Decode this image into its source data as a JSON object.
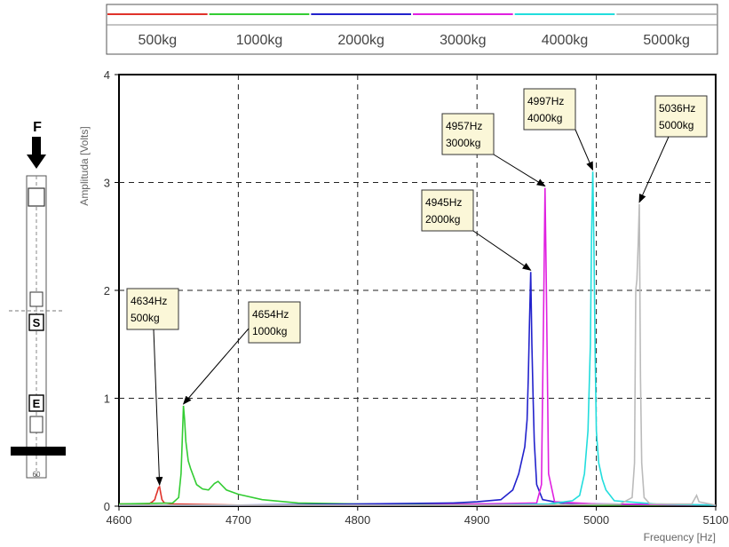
{
  "chart_data": {
    "type": "line",
    "title": "",
    "xlabel": "Frequency [Hz]",
    "ylabel": "Amplituda [Volts]",
    "xlim": [
      4600,
      5100
    ],
    "ylim": [
      0,
      4
    ],
    "xticks": [
      "4600",
      "4700",
      "4800",
      "4900",
      "5000",
      "5100"
    ],
    "yticks": [
      "0",
      "1",
      "2",
      "3",
      "4"
    ],
    "grid": true,
    "legend_position": "top",
    "series": [
      {
        "name": "500kg",
        "color": "#e0322a",
        "peak_label": [
          "4634Hz",
          "500kg"
        ],
        "x": [
          4600,
          4625,
          4628,
          4630,
          4631,
          4632,
          4633,
          4634,
          4635,
          4636,
          4638,
          4645,
          4700,
          4800,
          4900,
          5000,
          5100
        ],
        "y": [
          0.02,
          0.02,
          0.04,
          0.06,
          0.1,
          0.13,
          0.17,
          0.18,
          0.12,
          0.06,
          0.03,
          0.02,
          0.01,
          0.01,
          0.01,
          0.01,
          0.01
        ]
      },
      {
        "name": "1000kg",
        "color": "#33cc33",
        "peak_label": [
          "4654Hz",
          "1000kg"
        ],
        "x": [
          4600,
          4645,
          4650,
          4652,
          4653,
          4654,
          4655,
          4656,
          4658,
          4660,
          4665,
          4670,
          4675,
          4680,
          4683,
          4690,
          4700,
          4720,
          4750,
          4800,
          4850,
          4900,
          5000,
          5100
        ],
        "y": [
          0.02,
          0.03,
          0.08,
          0.3,
          0.6,
          0.93,
          0.8,
          0.6,
          0.42,
          0.35,
          0.2,
          0.16,
          0.15,
          0.21,
          0.23,
          0.15,
          0.11,
          0.06,
          0.03,
          0.02,
          0.02,
          0.02,
          0.01,
          0.01
        ]
      },
      {
        "name": "2000kg",
        "color": "#2222cc",
        "peak_label": [
          "4945Hz",
          "2000kg"
        ],
        "x": [
          4600,
          4700,
          4800,
          4880,
          4900,
          4920,
          4930,
          4935,
          4938,
          4940,
          4942,
          4943,
          4944,
          4945,
          4946,
          4947,
          4948,
          4950,
          4955,
          4970,
          5000,
          5100
        ],
        "y": [
          0.01,
          0.01,
          0.02,
          0.03,
          0.04,
          0.06,
          0.15,
          0.3,
          0.45,
          0.55,
          0.8,
          1.2,
          1.7,
          2.17,
          1.5,
          1.0,
          0.6,
          0.2,
          0.06,
          0.03,
          0.02,
          0.01
        ]
      },
      {
        "name": "3000kg",
        "color": "#e020e0",
        "peak_label": [
          "4957Hz",
          "3000kg"
        ],
        "x": [
          4600,
          4850,
          4900,
          4950,
          4954,
          4956,
          4957,
          4958,
          4960,
          4965,
          5000,
          5100
        ],
        "y": [
          0.01,
          0.01,
          0.02,
          0.03,
          0.2,
          2.0,
          2.95,
          2.1,
          0.3,
          0.04,
          0.02,
          0.01
        ]
      },
      {
        "name": "4000kg",
        "color": "#22dddd",
        "peak_label": [
          "4997Hz",
          "4000kg"
        ],
        "x": [
          4600,
          4900,
          4960,
          4980,
          4986,
          4990,
          4993,
          4995,
          4996,
          4997,
          4998,
          4999,
          5000,
          5002,
          5005,
          5008,
          5015,
          5050,
          5100
        ],
        "y": [
          0.01,
          0.01,
          0.02,
          0.05,
          0.1,
          0.3,
          0.7,
          1.5,
          2.5,
          3.1,
          2.4,
          1.4,
          0.7,
          0.4,
          0.25,
          0.15,
          0.05,
          0.02,
          0.01
        ]
      },
      {
        "name": "5000kg",
        "color": "#bbbbbb",
        "peak_label": [
          "5036Hz",
          "5000kg"
        ],
        "x": [
          4600,
          4950,
          5020,
          5030,
          5032,
          5033,
          5034,
          5035,
          5036,
          5037,
          5038,
          5040,
          5045,
          5080,
          5084,
          5086,
          5100
        ],
        "y": [
          0.01,
          0.01,
          0.02,
          0.08,
          0.4,
          2.0,
          2.1,
          2.4,
          2.8,
          1.2,
          0.4,
          0.08,
          0.02,
          0.02,
          0.1,
          0.04,
          0.01
        ]
      }
    ]
  },
  "diagram": {
    "force_label": "F",
    "s_label": "S",
    "e_label": "E",
    "base_label": "60"
  }
}
